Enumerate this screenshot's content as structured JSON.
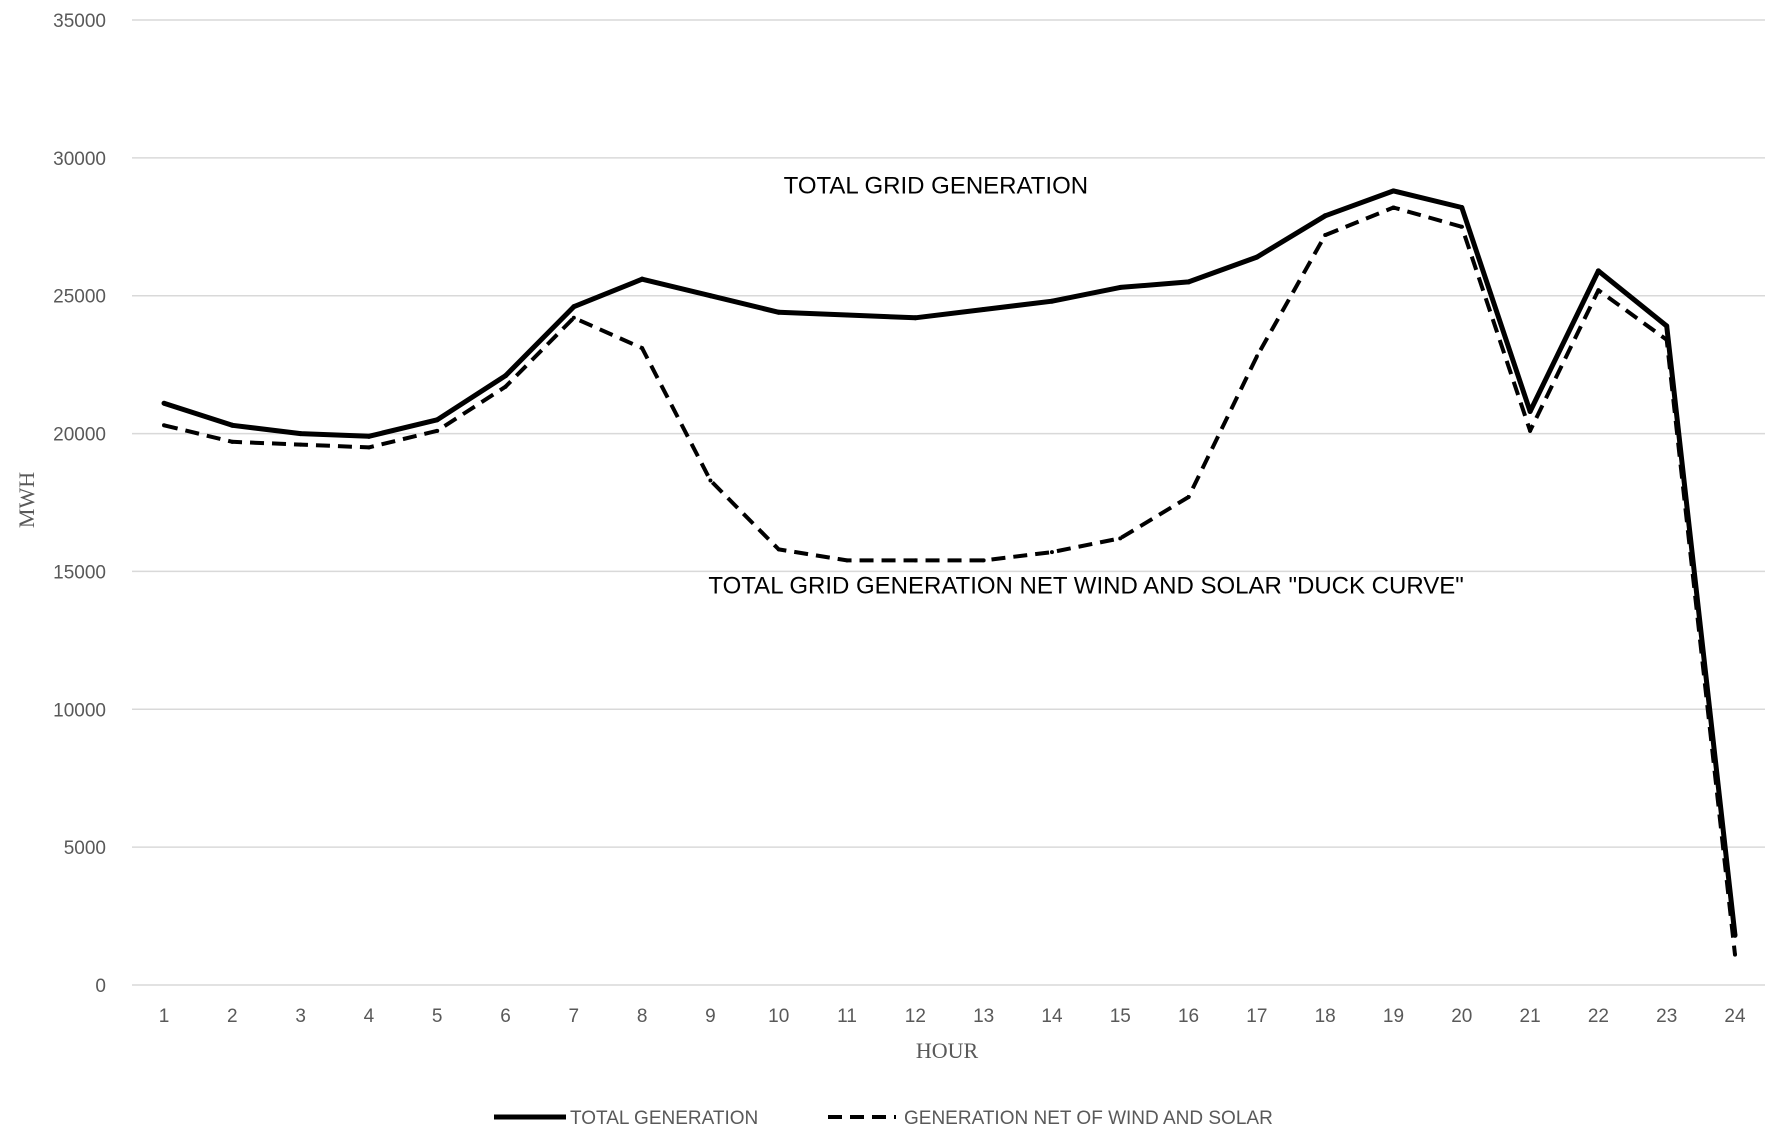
{
  "chart_data": {
    "type": "line",
    "title": "",
    "xlabel": "HOUR",
    "ylabel": "MWH",
    "x": [
      1,
      2,
      3,
      4,
      5,
      6,
      7,
      8,
      9,
      10,
      11,
      12,
      13,
      14,
      15,
      16,
      17,
      18,
      19,
      20,
      21,
      22,
      23,
      24
    ],
    "ylim": [
      0,
      35000
    ],
    "yticks": [
      0,
      5000,
      10000,
      15000,
      20000,
      25000,
      30000,
      35000
    ],
    "grid": "horizontal",
    "legend_position": "bottom",
    "series": [
      {
        "name": "TOTAL GENERATION",
        "style": "solid",
        "color": "#000000",
        "values": [
          21100,
          20300,
          20000,
          19900,
          20500,
          22100,
          24600,
          25600,
          25000,
          24400,
          24300,
          24200,
          24500,
          24800,
          25300,
          25500,
          26400,
          27900,
          28800,
          28200,
          20800,
          25900,
          23900,
          1800
        ]
      },
      {
        "name": "GENERATION NET OF WIND AND SOLAR",
        "style": "dashed",
        "color": "#000000",
        "values": [
          20300,
          19700,
          19600,
          19500,
          20100,
          21700,
          24200,
          23100,
          18300,
          15800,
          15400,
          15400,
          15400,
          15700,
          16200,
          17700,
          22800,
          27200,
          28200,
          27500,
          20100,
          25200,
          23400,
          1100
        ]
      }
    ],
    "annotations": [
      {
        "text": "TOTAL GRID GENERATION",
        "x": 12.3,
        "y": 28700
      },
      {
        "text": "TOTAL GRID GENERATION  NET WIND AND SOLAR \"DUCK CURVE\"",
        "x": 14.5,
        "y": 14200
      }
    ]
  }
}
